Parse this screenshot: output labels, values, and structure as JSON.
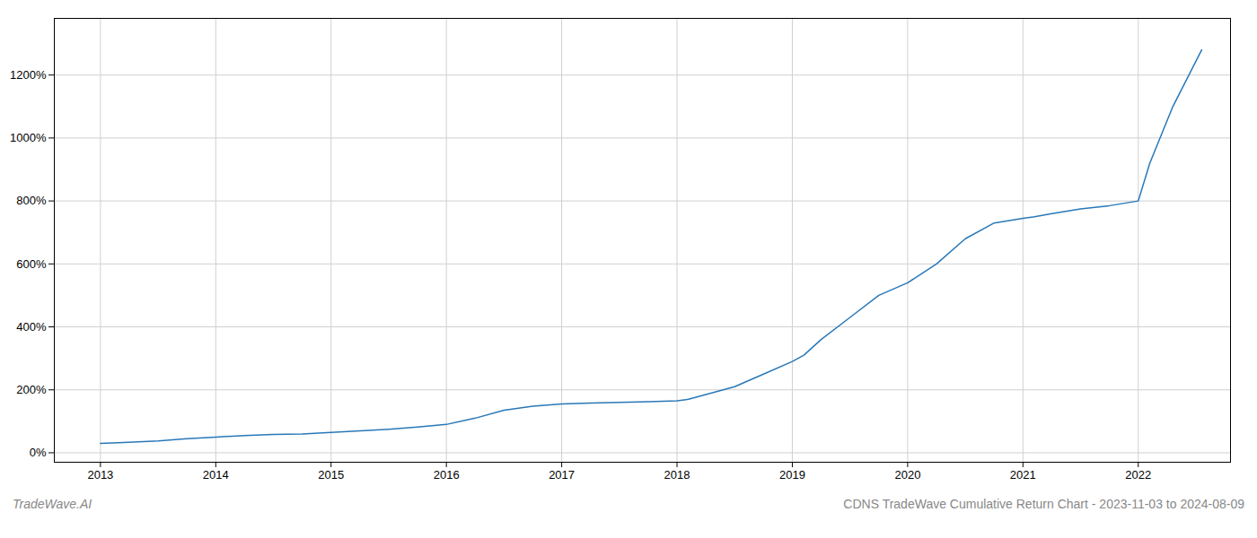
{
  "chart_data": {
    "type": "line",
    "title": "CDNS TradeWave Cumulative Return Chart - 2023-11-03 to 2024-08-09",
    "annotations": [
      "TradeWave.AI"
    ],
    "x": [
      2013.0,
      2013.2,
      2013.5,
      2013.75,
      2014.0,
      2014.25,
      2014.5,
      2014.75,
      2015.0,
      2015.25,
      2015.5,
      2015.75,
      2016.0,
      2016.25,
      2016.5,
      2016.75,
      2017.0,
      2017.25,
      2017.5,
      2017.75,
      2018.0,
      2018.1,
      2018.25,
      2018.5,
      2018.75,
      2019.0,
      2019.1,
      2019.25,
      2019.5,
      2019.75,
      2020.0,
      2020.25,
      2020.5,
      2020.75,
      2021.0,
      2021.1,
      2021.25,
      2021.5,
      2021.75,
      2022.0,
      2022.1,
      2022.3,
      2022.55
    ],
    "values": [
      30,
      33,
      38,
      45,
      50,
      55,
      58,
      60,
      65,
      70,
      75,
      82,
      90,
      110,
      135,
      148,
      155,
      158,
      160,
      162,
      165,
      170,
      185,
      210,
      250,
      290,
      310,
      360,
      430,
      500,
      540,
      600,
      680,
      730,
      745,
      750,
      760,
      775,
      785,
      800,
      920,
      1100,
      1280
    ],
    "color": "#2878b8",
    "xlim": [
      2012.6,
      2022.8
    ],
    "xticks": [
      2013,
      2014,
      2015,
      2016,
      2017,
      2018,
      2019,
      2020,
      2021,
      2022
    ],
    "ylim": [
      -30,
      1380
    ],
    "yticks": [
      {
        "value": 0,
        "label": "0%"
      },
      {
        "value": 200,
        "label": "200%"
      },
      {
        "value": 400,
        "label": "400%"
      },
      {
        "value": 600,
        "label": "600%"
      },
      {
        "value": 800,
        "label": "800%"
      },
      {
        "value": 1000,
        "label": "1000%"
      },
      {
        "value": 1200,
        "label": "1200%"
      }
    ],
    "grid": true
  }
}
